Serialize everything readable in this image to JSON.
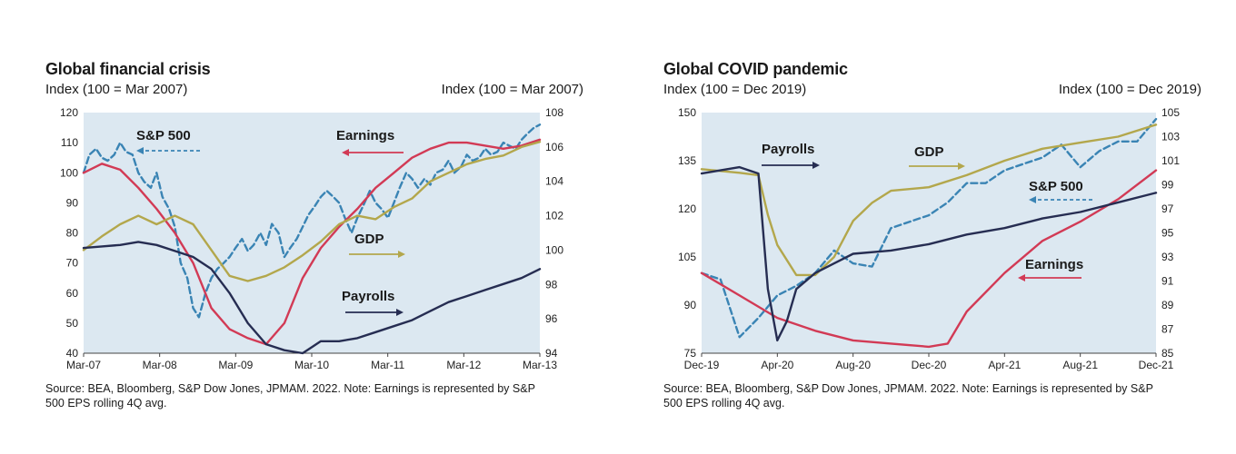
{
  "colors": {
    "plot_bg": "#dce8f1",
    "sp500": "#3a84b4",
    "earnings": "#d23a55",
    "gdp": "#b3a74c",
    "payrolls": "#262d52"
  },
  "chart_data": [
    {
      "type": "line",
      "title": "Global financial crisis",
      "left_axis_title": "Index (100 = Mar 2007)",
      "right_axis_title": "Index (100 = Mar 2007)",
      "source": "Source: BEA, Bloomberg, S&P Dow Jones, JPMAM. 2022. Note: Earnings is represented by S&P 500 EPS rolling 4Q avg.",
      "xlim": [
        0,
        6.25
      ],
      "x_tick_labels": [
        "Mar-07",
        "Mar-08",
        "Mar-09",
        "Mar-10",
        "Mar-11",
        "Mar-12",
        "Mar-13"
      ],
      "ylim_left": [
        40,
        120
      ],
      "y_ticks_left": [
        40,
        50,
        60,
        70,
        80,
        90,
        100,
        110,
        120
      ],
      "ylim_right": [
        94,
        108
      ],
      "y_ticks_right": [
        94,
        96,
        98,
        100,
        102,
        104,
        106,
        108
      ],
      "grid": false,
      "series": [
        {
          "name": "S&P 500",
          "axis": "left",
          "style": "dashed",
          "color_key": "sp500",
          "arrow": "left",
          "x": [
            0,
            0.08,
            0.17,
            0.25,
            0.33,
            0.42,
            0.5,
            0.58,
            0.67,
            0.75,
            0.83,
            0.92,
            1,
            1.08,
            1.17,
            1.25,
            1.33,
            1.42,
            1.5,
            1.58,
            1.67,
            1.75,
            1.83,
            1.92,
            2,
            2.08,
            2.17,
            2.25,
            2.33,
            2.42,
            2.5,
            2.58,
            2.67,
            2.75,
            2.83,
            2.92,
            3,
            3.08,
            3.17,
            3.25,
            3.33,
            3.42,
            3.5,
            3.58,
            3.67,
            3.75,
            3.83,
            3.92,
            4,
            4.08,
            4.17,
            4.25,
            4.33,
            4.42,
            4.5,
            4.58,
            4.67,
            4.75,
            4.83,
            4.92,
            5,
            5.08,
            5.17,
            5.25,
            5.33,
            5.42,
            5.5,
            5.58,
            5.67,
            5.75,
            5.83,
            5.92,
            6,
            6.08,
            6.17,
            6.25
          ],
          "values": [
            100,
            106,
            108,
            105,
            104,
            106,
            110,
            107,
            106,
            100,
            97,
            95,
            100,
            92,
            88,
            82,
            70,
            65,
            55,
            52,
            60,
            65,
            68,
            70,
            72,
            75,
            78,
            74,
            76,
            80,
            76,
            83,
            80,
            72,
            75,
            78,
            82,
            86,
            89,
            92,
            94,
            92,
            90,
            85,
            80,
            85,
            89,
            94,
            90,
            88,
            85,
            90,
            95,
            100,
            98,
            95,
            98,
            96,
            100,
            101,
            104,
            100,
            102,
            106,
            104,
            105,
            108,
            106,
            107,
            110,
            109,
            108,
            111,
            113,
            115,
            116
          ]
        },
        {
          "name": "Earnings",
          "axis": "left",
          "style": "solid",
          "color_key": "earnings",
          "arrow": "left",
          "x": [
            0,
            0.25,
            0.5,
            0.75,
            1,
            1.25,
            1.5,
            1.75,
            2,
            2.25,
            2.5,
            2.75,
            3,
            3.25,
            3.5,
            3.75,
            4,
            4.25,
            4.5,
            4.75,
            5,
            5.25,
            5.5,
            5.75,
            6,
            6.25
          ],
          "values": [
            100,
            103,
            101,
            95,
            88,
            80,
            70,
            55,
            48,
            45,
            43,
            50,
            65,
            75,
            82,
            88,
            95,
            100,
            105,
            108,
            110,
            110,
            109,
            108,
            109,
            111
          ]
        },
        {
          "name": "GDP",
          "axis": "right",
          "style": "solid",
          "color_key": "gdp",
          "arrow": "right",
          "x": [
            0,
            0.25,
            0.5,
            0.75,
            1,
            1.25,
            1.5,
            1.75,
            2,
            2.25,
            2.5,
            2.75,
            3,
            3.25,
            3.5,
            3.75,
            4,
            4.25,
            4.5,
            4.75,
            5,
            5.25,
            5.5,
            5.75,
            6,
            6.25
          ],
          "values": [
            100,
            100.8,
            101.5,
            102,
            101.5,
            102,
            101.5,
            100,
            98.5,
            98.2,
            98.5,
            99,
            99.7,
            100.5,
            101.5,
            102,
            101.8,
            102.5,
            103,
            104,
            104.5,
            105,
            105.3,
            105.5,
            106,
            106.3
          ]
        },
        {
          "name": "Payrolls",
          "axis": "left",
          "style": "solid",
          "color_key": "payrolls",
          "arrow": "right",
          "x": [
            0,
            0.25,
            0.5,
            0.75,
            1,
            1.25,
            1.5,
            1.75,
            2,
            2.25,
            2.5,
            2.75,
            3,
            3.25,
            3.5,
            3.75,
            4,
            4.25,
            4.5,
            4.75,
            5,
            5.25,
            5.5,
            5.75,
            6,
            6.25
          ],
          "values": [
            75,
            75.5,
            76,
            77,
            76,
            74,
            72,
            68,
            60,
            50,
            43,
            41,
            40,
            44,
            44,
            45,
            47,
            49,
            51,
            54,
            57,
            59,
            61,
            63,
            65,
            68
          ]
        }
      ]
    },
    {
      "type": "line",
      "title": "Global COVID pandemic",
      "left_axis_title": "Index (100 = Dec 2019)",
      "right_axis_title": "Index (100 = Dec 2019)",
      "source": "Source: BEA, Bloomberg, S&P Dow Jones, JPMAM. 2022. Note: Earnings is represented by S&P 500 EPS rolling 4Q avg.",
      "xlim": [
        0,
        24
      ],
      "x_tick_labels": [
        "Dec-19",
        "Apr-20",
        "Aug-20",
        "Dec-20",
        "Apr-21",
        "Aug-21",
        "Dec-21"
      ],
      "ylim_left": [
        75,
        150
      ],
      "y_ticks_left": [
        75,
        90,
        105,
        120,
        135,
        150
      ],
      "ylim_right": [
        85,
        105
      ],
      "y_ticks_right": [
        85,
        87,
        89,
        91,
        93,
        95,
        97,
        99,
        101,
        103,
        105
      ],
      "grid": false,
      "series": [
        {
          "name": "S&P 500",
          "axis": "left",
          "style": "dashed",
          "color_key": "sp500",
          "arrow": "left",
          "x": [
            0,
            1,
            2,
            3,
            4,
            5,
            6,
            7,
            8,
            9,
            10,
            11,
            12,
            13,
            14,
            15,
            16,
            17,
            18,
            19,
            20,
            21,
            22,
            23,
            24
          ],
          "values": [
            100,
            98,
            80,
            86,
            93,
            96,
            100,
            107,
            103,
            102,
            114,
            116,
            118,
            122,
            128,
            128,
            132,
            134,
            136,
            140,
            133,
            138,
            141,
            141,
            148
          ]
        },
        {
          "name": "Earnings",
          "axis": "left",
          "style": "solid",
          "color_key": "earnings",
          "arrow": "left",
          "x": [
            0,
            2,
            4,
            6,
            8,
            10,
            12,
            13,
            14,
            16,
            18,
            20,
            22,
            24
          ],
          "values": [
            100,
            93,
            86,
            82,
            79,
            78,
            77,
            78,
            88,
            100,
            110,
            116,
            123,
            132
          ]
        },
        {
          "name": "GDP",
          "axis": "right",
          "style": "solid",
          "color_key": "gdp",
          "arrow": "right",
          "x": [
            0,
            2,
            3,
            3.5,
            4,
            5,
            6,
            7,
            8,
            9,
            10,
            12,
            14,
            16,
            18,
            20,
            22,
            24
          ],
          "values": [
            100.3,
            100,
            99.8,
            96.5,
            94,
            91.5,
            91.5,
            93,
            96,
            97.5,
            98.5,
            98.8,
            99.8,
            101,
            102,
            102.5,
            103,
            104
          ]
        },
        {
          "name": "Payrolls",
          "axis": "left",
          "style": "solid",
          "color_key": "payrolls",
          "arrow": "right",
          "x": [
            0,
            1,
            2,
            3,
            3.5,
            4,
            4.5,
            5,
            6,
            7,
            8,
            10,
            12,
            14,
            16,
            18,
            20,
            22,
            24
          ],
          "values": [
            131,
            132,
            133,
            131,
            95,
            79,
            85,
            95,
            100,
            103,
            106,
            107,
            109,
            112,
            114,
            117,
            119,
            122,
            125
          ]
        }
      ]
    }
  ]
}
